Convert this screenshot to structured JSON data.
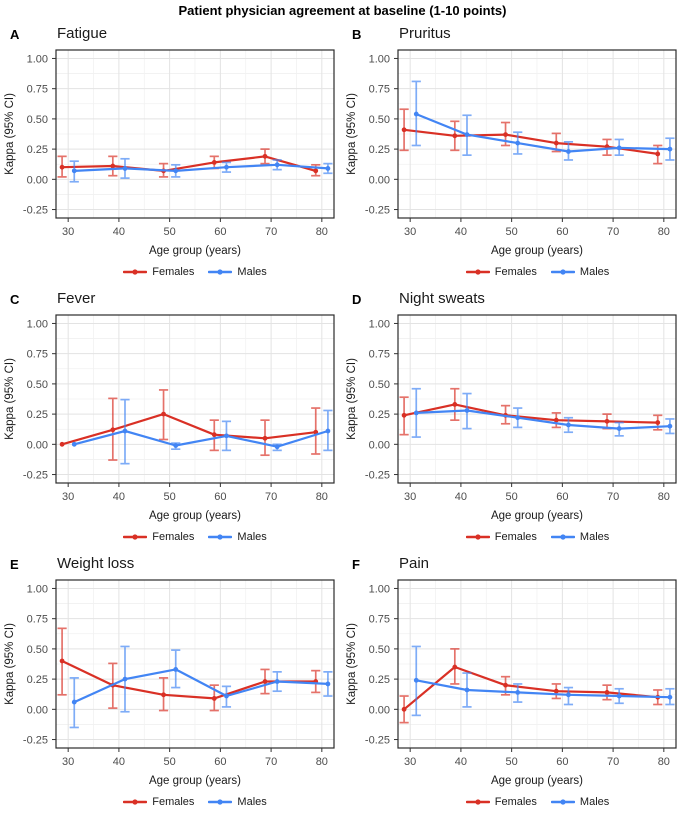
{
  "figure": {
    "title": "Patient physician agreement at baseline (1-10 points)",
    "colors": {
      "females": "#d93025",
      "males": "#4285f4",
      "grid_major": "#e3e3e3",
      "grid_minor": "#f1f1f1",
      "panel_border": "#2b2b2b",
      "tick_text": "#4d4d4d",
      "axis_title_text": "#1a1a1a"
    }
  },
  "chart_data": [
    {
      "panel": "A",
      "title": "Fatigue",
      "type": "line",
      "xlabel": "Age group (years)",
      "ylabel": "Kappa (95% CI)",
      "x": [
        30,
        40,
        50,
        60,
        70,
        80
      ],
      "xlim": [
        27.6,
        82.4
      ],
      "ylim": [
        -0.25,
        1.0
      ],
      "ytick_labels": [
        "1.00",
        "0.75",
        "0.50",
        "0.25",
        "0.00",
        "-0.25"
      ],
      "ytick_values": [
        1.0,
        0.75,
        0.5,
        0.25,
        0.0,
        -0.25
      ],
      "grid": true,
      "legend_position": "bottom",
      "series": [
        {
          "name": "Females",
          "color": "#d93025",
          "values": [
            0.1,
            0.11,
            0.07,
            0.14,
            0.19,
            0.07
          ],
          "ci_low": [
            0.02,
            0.03,
            0.02,
            0.09,
            0.13,
            0.03
          ],
          "ci_high": [
            0.19,
            0.19,
            0.13,
            0.19,
            0.25,
            0.12
          ]
        },
        {
          "name": "Males",
          "color": "#4285f4",
          "values": [
            0.07,
            0.09,
            0.07,
            0.1,
            0.12,
            0.09
          ],
          "ci_low": [
            -0.02,
            0.01,
            0.02,
            0.06,
            0.08,
            0.05
          ],
          "ci_high": [
            0.15,
            0.17,
            0.12,
            0.14,
            0.16,
            0.13
          ]
        }
      ]
    },
    {
      "panel": "B",
      "title": "Pruritus",
      "type": "line",
      "xlabel": "Age group (years)",
      "ylabel": "Kappa (95% CI)",
      "x": [
        30,
        40,
        50,
        60,
        70,
        80
      ],
      "xlim": [
        27.6,
        82.4
      ],
      "ylim": [
        -0.25,
        1.0
      ],
      "ytick_labels": [
        "1.00",
        "0.75",
        "0.50",
        "0.25",
        "0.00",
        "-0.25"
      ],
      "ytick_values": [
        1.0,
        0.75,
        0.5,
        0.25,
        0.0,
        -0.25
      ],
      "grid": true,
      "legend_position": "bottom",
      "series": [
        {
          "name": "Females",
          "color": "#d93025",
          "values": [
            0.41,
            0.36,
            0.37,
            0.3,
            0.27,
            0.21
          ],
          "ci_low": [
            0.24,
            0.24,
            0.28,
            0.23,
            0.2,
            0.13
          ],
          "ci_high": [
            0.58,
            0.48,
            0.47,
            0.38,
            0.33,
            0.28
          ]
        },
        {
          "name": "Males",
          "color": "#4285f4",
          "values": [
            0.54,
            0.37,
            0.3,
            0.23,
            0.26,
            0.25
          ],
          "ci_low": [
            0.28,
            0.2,
            0.21,
            0.16,
            0.2,
            0.16
          ],
          "ci_high": [
            0.81,
            0.53,
            0.39,
            0.31,
            0.33,
            0.34
          ]
        }
      ]
    },
    {
      "panel": "C",
      "title": "Fever",
      "type": "line",
      "xlabel": "Age group (years)",
      "ylabel": "Kappa (95% CI)",
      "x": [
        30,
        40,
        50,
        60,
        70,
        80
      ],
      "xlim": [
        27.6,
        82.4
      ],
      "ylim": [
        -0.25,
        1.0
      ],
      "ytick_labels": [
        "1.00",
        "0.75",
        "0.50",
        "0.25",
        "0.00",
        "-0.25"
      ],
      "ytick_values": [
        1.0,
        0.75,
        0.5,
        0.25,
        0.0,
        -0.25
      ],
      "grid": true,
      "legend_position": "bottom",
      "series": [
        {
          "name": "Females",
          "color": "#d93025",
          "values": [
            0.0,
            0.12,
            0.25,
            0.08,
            0.05,
            0.1
          ],
          "ci_low": [
            0.0,
            -0.13,
            0.04,
            -0.05,
            -0.09,
            -0.08
          ],
          "ci_high": [
            0.0,
            0.38,
            0.45,
            0.2,
            0.2,
            0.3
          ]
        },
        {
          "name": "Males",
          "color": "#4285f4",
          "values": [
            0.0,
            0.11,
            -0.01,
            0.07,
            -0.02,
            0.11
          ],
          "ci_low": [
            0.0,
            -0.16,
            -0.04,
            -0.05,
            -0.05,
            -0.05
          ],
          "ci_high": [
            0.0,
            0.37,
            0.01,
            0.19,
            0.0,
            0.28
          ]
        }
      ]
    },
    {
      "panel": "D",
      "title": "Night sweats",
      "type": "line",
      "xlabel": "Age group (years)",
      "ylabel": "Kappa (95% CI)",
      "x": [
        30,
        40,
        50,
        60,
        70,
        80
      ],
      "xlim": [
        27.6,
        82.4
      ],
      "ylim": [
        -0.25,
        1.0
      ],
      "ytick_labels": [
        "1.00",
        "0.75",
        "0.50",
        "0.25",
        "0.00",
        "-0.25"
      ],
      "ytick_values": [
        1.0,
        0.75,
        0.5,
        0.25,
        0.0,
        -0.25
      ],
      "grid": true,
      "legend_position": "bottom",
      "series": [
        {
          "name": "Females",
          "color": "#d93025",
          "values": [
            0.24,
            0.33,
            0.24,
            0.2,
            0.19,
            0.18
          ],
          "ci_low": [
            0.08,
            0.2,
            0.17,
            0.14,
            0.13,
            0.12
          ],
          "ci_high": [
            0.39,
            0.46,
            0.32,
            0.26,
            0.25,
            0.24
          ]
        },
        {
          "name": "Males",
          "color": "#4285f4",
          "values": [
            0.26,
            0.28,
            0.22,
            0.16,
            0.13,
            0.15
          ],
          "ci_low": [
            0.06,
            0.13,
            0.14,
            0.1,
            0.07,
            0.09
          ],
          "ci_high": [
            0.46,
            0.42,
            0.3,
            0.22,
            0.18,
            0.21
          ]
        }
      ]
    },
    {
      "panel": "E",
      "title": "Weight loss",
      "type": "line",
      "xlabel": "Age group (years)",
      "ylabel": "Kappa (95% CI)",
      "x": [
        30,
        40,
        50,
        60,
        70,
        80
      ],
      "xlim": [
        27.6,
        82.4
      ],
      "ylim": [
        -0.25,
        1.0
      ],
      "ytick_labels": [
        "1.00",
        "0.75",
        "0.50",
        "0.25",
        "0.00",
        "-0.25"
      ],
      "ytick_values": [
        1.0,
        0.75,
        0.5,
        0.25,
        0.0,
        -0.25
      ],
      "grid": true,
      "legend_position": "bottom",
      "series": [
        {
          "name": "Females",
          "color": "#d93025",
          "values": [
            0.4,
            0.2,
            0.12,
            0.09,
            0.23,
            0.23
          ],
          "ci_low": [
            0.12,
            0.01,
            -0.01,
            -0.01,
            0.13,
            0.14
          ],
          "ci_high": [
            0.67,
            0.38,
            0.26,
            0.2,
            0.33,
            0.32
          ]
        },
        {
          "name": "Males",
          "color": "#4285f4",
          "values": [
            0.06,
            0.25,
            0.33,
            0.11,
            0.23,
            0.21
          ],
          "ci_low": [
            -0.15,
            -0.02,
            0.18,
            0.02,
            0.15,
            0.11
          ],
          "ci_high": [
            0.26,
            0.52,
            0.49,
            0.19,
            0.31,
            0.31
          ]
        }
      ]
    },
    {
      "panel": "F",
      "title": "Pain",
      "type": "line",
      "xlabel": "Age group (years)",
      "ylabel": "Kappa (95% CI)",
      "x": [
        30,
        40,
        50,
        60,
        70,
        80
      ],
      "xlim": [
        27.6,
        82.4
      ],
      "ylim": [
        -0.25,
        1.0
      ],
      "ytick_labels": [
        "1.00",
        "0.75",
        "0.50",
        "0.25",
        "0.00",
        "-0.25"
      ],
      "ytick_values": [
        1.0,
        0.75,
        0.5,
        0.25,
        0.0,
        -0.25
      ],
      "grid": true,
      "legend_position": "bottom",
      "series": [
        {
          "name": "Females",
          "color": "#d93025",
          "values": [
            0.0,
            0.35,
            0.2,
            0.15,
            0.14,
            0.1
          ],
          "ci_low": [
            -0.11,
            0.21,
            0.12,
            0.09,
            0.08,
            0.04
          ],
          "ci_high": [
            0.11,
            0.5,
            0.27,
            0.21,
            0.2,
            0.16
          ]
        },
        {
          "name": "Males",
          "color": "#4285f4",
          "values": [
            0.24,
            0.16,
            0.14,
            0.12,
            0.11,
            0.1
          ],
          "ci_low": [
            -0.05,
            0.02,
            0.06,
            0.04,
            0.05,
            0.04
          ],
          "ci_high": [
            0.52,
            0.3,
            0.21,
            0.18,
            0.17,
            0.17
          ]
        }
      ]
    }
  ]
}
